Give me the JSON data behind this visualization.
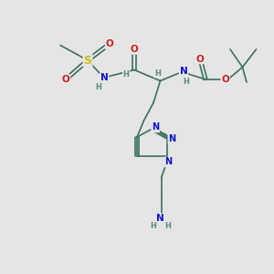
{
  "bg_color": "#e5e5e5",
  "bond_color": "#3a7060",
  "bond_width": 1.2,
  "atom_colors": {
    "C": "#3a7060",
    "N": "#1010cc",
    "O": "#cc2020",
    "S": "#c8c010",
    "H": "#5a8a7a"
  },
  "font_size": 7.5,
  "font_size_small": 6.0,
  "font_size_large": 9.0
}
